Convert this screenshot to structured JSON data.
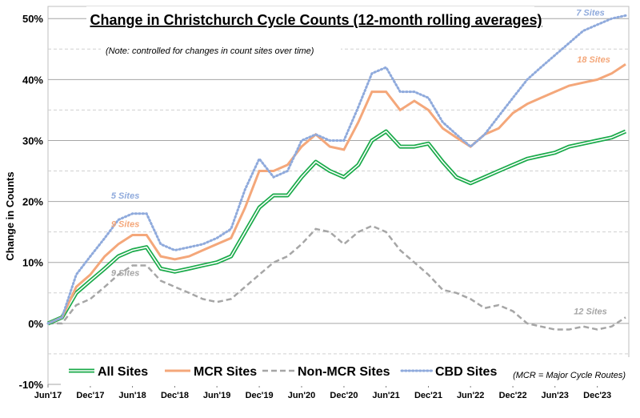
{
  "chart_data": {
    "type": "line",
    "title": "Change in Christchurch Cycle Counts (12-month rolling averages)",
    "note": "(Note: controlled for changes in count sites over time)",
    "ylabel": "Change in Counts",
    "ylim": [
      -10,
      52
    ],
    "yticks": [
      "-10%",
      "0%",
      "10%",
      "20%",
      "30%",
      "40%",
      "50%"
    ],
    "ytick_values": [
      -10,
      0,
      10,
      20,
      30,
      40,
      50
    ],
    "xlim": [
      "2017-06-01",
      "2024-04-15"
    ],
    "xticks": [
      "Jun'17",
      "Dec'17",
      "Jun'18",
      "Dec'18",
      "Jun'19",
      "Dec'19",
      "Jun'20",
      "Dec'20",
      "Jun'21",
      "Dec'21",
      "Jun'22",
      "Dec'22",
      "Jun'23",
      "Dec'23"
    ],
    "xtick_dates": [
      "2017-06-01",
      "2017-12-01",
      "2018-06-01",
      "2018-12-01",
      "2019-06-01",
      "2019-12-01",
      "2020-06-01",
      "2020-12-01",
      "2021-06-01",
      "2021-12-01",
      "2022-06-01",
      "2022-12-01",
      "2023-06-01",
      "2023-12-01"
    ],
    "grid": true,
    "legend_position": "bottom",
    "footnote": "(MCR = Major Cycle Routes)",
    "x": [
      "2017-06-01",
      "2017-08-01",
      "2017-10-01",
      "2017-12-01",
      "2018-02-01",
      "2018-04-01",
      "2018-06-01",
      "2018-08-01",
      "2018-10-01",
      "2018-12-01",
      "2019-02-01",
      "2019-04-01",
      "2019-06-01",
      "2019-08-01",
      "2019-10-01",
      "2019-12-01",
      "2020-02-01",
      "2020-04-01",
      "2020-06-01",
      "2020-08-01",
      "2020-10-01",
      "2020-12-01",
      "2021-02-01",
      "2021-04-01",
      "2021-06-01",
      "2021-08-01",
      "2021-10-01",
      "2021-12-01",
      "2022-02-01",
      "2022-04-01",
      "2022-06-01",
      "2022-08-01",
      "2022-10-01",
      "2022-12-01",
      "2023-02-01",
      "2023-04-01",
      "2023-06-01",
      "2023-08-01",
      "2023-10-01",
      "2023-12-01",
      "2024-02-01",
      "2024-04-01"
    ],
    "series": [
      {
        "name": "All Sites",
        "style": "double",
        "color": "#1aaa4a",
        "values": [
          0,
          1,
          5,
          7,
          9,
          11,
          12,
          12.5,
          9,
          8.5,
          9,
          9.5,
          10,
          11,
          15,
          19,
          21,
          21,
          24,
          26.5,
          25,
          24,
          26,
          30,
          31.5,
          29,
          29,
          29.5,
          26.5,
          24,
          23,
          24,
          25,
          26,
          27,
          27.5,
          28,
          29,
          29.5,
          30,
          30.5,
          31.5
        ]
      },
      {
        "name": "MCR Sites",
        "style": "solid",
        "color": "#f4a77a",
        "values": [
          0,
          1,
          6,
          8,
          11,
          13,
          14.5,
          14.5,
          11,
          10.5,
          11,
          12,
          13,
          14,
          19,
          25,
          25,
          26,
          29,
          31,
          29,
          28.5,
          33,
          38,
          38,
          35,
          36.5,
          35,
          32,
          30.5,
          29,
          31,
          32,
          34.5,
          36,
          37,
          38,
          39,
          39.5,
          40,
          41,
          42.5
        ]
      },
      {
        "name": "Non-MCR Sites",
        "style": "dashed",
        "color": "#a6a6a6",
        "values": [
          0,
          0,
          3,
          4,
          6,
          8,
          9.5,
          9.5,
          7,
          6,
          5,
          4,
          3.5,
          4,
          6,
          8,
          10,
          11,
          13,
          15.5,
          15,
          13,
          15,
          16,
          15,
          12,
          10,
          8,
          5.5,
          5,
          4,
          2.5,
          3,
          2,
          0,
          -0.5,
          -1,
          -1,
          -0.5,
          -1,
          -0.5,
          1
        ]
      },
      {
        "name": "CBD Sites",
        "style": "dotted",
        "color": "#8faadc",
        "values": [
          0,
          1,
          8,
          11,
          14,
          17,
          18,
          18,
          13,
          12,
          12.5,
          13,
          14,
          15.5,
          22,
          27,
          24,
          25,
          30,
          31,
          30,
          30,
          35.5,
          41,
          42,
          38,
          38,
          37,
          33,
          31,
          29,
          31,
          34,
          37,
          40,
          42,
          44,
          46,
          48,
          49,
          50,
          50.5
        ]
      }
    ],
    "annotations": [
      {
        "text": "7 Sites",
        "series": "CBD Sites",
        "date": "2023-11-01",
        "value": 50.5
      },
      {
        "text": "18 Sites",
        "series": "MCR Sites",
        "date": "2023-11-15",
        "value": 42.8
      },
      {
        "text": "5 Sites",
        "series": "CBD Sites",
        "date": "2018-05-01",
        "value": 20.5
      },
      {
        "text": "9 Sites",
        "series": "MCR Sites",
        "date": "2018-05-01",
        "value": 15.8
      },
      {
        "text": "9 Sites",
        "series": "Non-MCR Sites",
        "date": "2018-05-01",
        "value": 7.8
      },
      {
        "text": "12 Sites",
        "series": "Non-MCR Sites",
        "date": "2023-11-01",
        "value": 1.5
      }
    ]
  }
}
